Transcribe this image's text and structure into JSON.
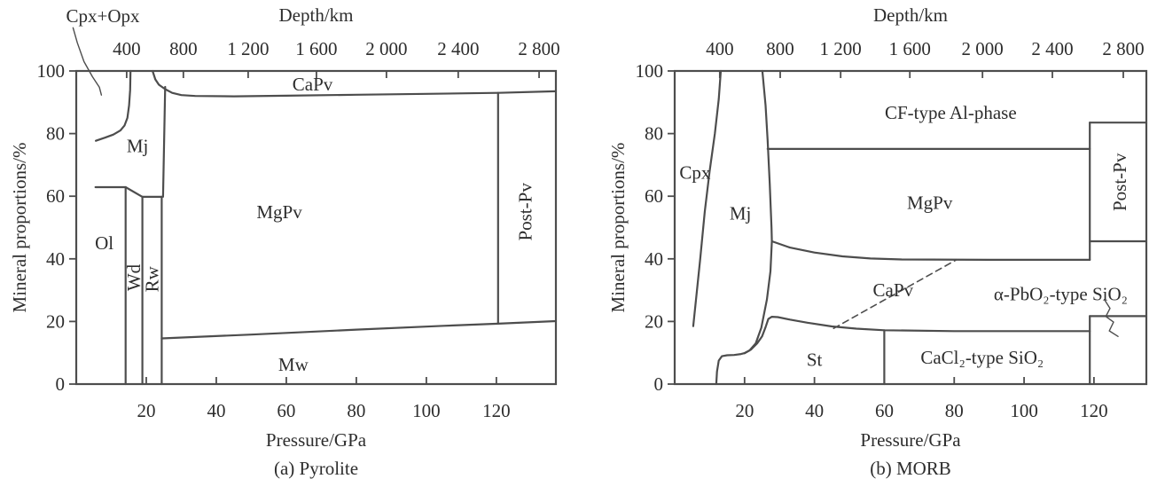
{
  "chart_data": {
    "type": "line",
    "kind": "mineral-phase-proportion-diagram",
    "line_color": "#4d4d4d",
    "text_color": "#2d2d2d",
    "panels": [
      {
        "id": "pyrolite",
        "caption": "(a) Pyrolite",
        "depth_axis_label": "Depth/km",
        "pressure_axis_label": "Pressure/GPa",
        "y_axis_label": "Mineral proportions/%",
        "xlim": [
          0,
          137
        ],
        "ylim": [
          0,
          100
        ],
        "pressure_ticks": [
          20,
          40,
          60,
          80,
          100,
          120
        ],
        "y_ticks": [
          0,
          20,
          40,
          60,
          80,
          100
        ],
        "depth_ticks": [
          {
            "label": "400",
            "gpa": 14.4
          },
          {
            "label": "800",
            "gpa": 30.6
          },
          {
            "label": "1 200",
            "gpa": 49.1
          },
          {
            "label": "1 600",
            "gpa": 68.6
          },
          {
            "label": "2 000",
            "gpa": 88.6
          },
          {
            "label": "2 400",
            "gpa": 109.1
          },
          {
            "label": "2 800",
            "gpa": 132.2
          }
        ],
        "boundaries": [
          {
            "name": "ol-wd-rw-top",
            "points": [
              [
                5.5,
                62.9
              ],
              [
                14.1,
                62.9
              ],
              [
                18.9,
                59.8
              ],
              [
                24.4,
                59.8
              ]
            ]
          },
          {
            "name": "ol-wd-boundary",
            "points": [
              [
                14.1,
                0
              ],
              [
                14.1,
                62.9
              ]
            ]
          },
          {
            "name": "wd-rw-boundary",
            "points": [
              [
                18.9,
                0
              ],
              [
                18.9,
                59.8
              ]
            ]
          },
          {
            "name": "rw-mgpv-boundary",
            "points": [
              [
                24.4,
                0
              ],
              [
                24.4,
                59.8
              ]
            ]
          },
          {
            "name": "mj-mgpv-boundary",
            "points": [
              [
                24.8,
                59.8
              ],
              [
                25.4,
                94.9
              ]
            ]
          },
          {
            "name": "cpxopx-mj-boundary",
            "points": [
              [
                5.6,
                77.7
              ],
              [
                8.2,
                78.7
              ],
              [
                10.6,
                79.7
              ],
              [
                12.6,
                81
              ],
              [
                13.8,
                82.6
              ],
              [
                14.6,
                85
              ],
              [
                15.1,
                89
              ],
              [
                15.4,
                94
              ],
              [
                15.5,
                100
              ]
            ]
          },
          {
            "name": "capv-mgpv-boundary",
            "points": [
              [
                21.8,
                100
              ],
              [
                22.6,
                97.3
              ],
              [
                23.6,
                95.6
              ],
              [
                25.4,
                94.2
              ],
              [
                27.4,
                93
              ],
              [
                30,
                92.3
              ],
              [
                34,
                92
              ],
              [
                45,
                91.9
              ],
              [
                60,
                92.1
              ],
              [
                80,
                92.4
              ],
              [
                100,
                92.7
              ],
              [
                120.5,
                93
              ],
              [
                137,
                93.5
              ]
            ]
          },
          {
            "name": "mgpv-postpv-boundary",
            "points": [
              [
                120.5,
                19.3
              ],
              [
                120.5,
                93
              ]
            ]
          },
          {
            "name": "mw-top-boundary",
            "points": [
              [
                24.4,
                14.6
              ],
              [
                50,
                15.8
              ],
              [
                80,
                17.4
              ],
              [
                105,
                18.6
              ],
              [
                120.5,
                19.3
              ],
              [
                137,
                20.1
              ]
            ]
          }
        ],
        "labels": [
          {
            "text": "Ol",
            "p": 8,
            "pct": 45
          },
          {
            "text": "Wd",
            "p": 16.4,
            "pct": 34,
            "rotate": -90
          },
          {
            "text": "Rw",
            "p": 21.6,
            "pct": 33.5,
            "rotate": -90
          },
          {
            "text": "Mj",
            "p": 17.5,
            "pct": 76
          },
          {
            "text": "CaPv",
            "p": 67.5,
            "pct": 95.7
          },
          {
            "text": "MgPv",
            "p": 58,
            "pct": 55
          },
          {
            "text": "Post-Pv",
            "p": 128.3,
            "pct": 55,
            "rotate": -90
          },
          {
            "text": "Mw",
            "p": 62,
            "pct": 6.3
          }
        ],
        "annotations": [
          {
            "text": "Cpx+Opx",
            "p": 7.6,
            "pct": 117.5,
            "leader": [
              [
                -0.9,
                113.8
              ],
              [
                0.3,
                109
              ],
              [
                2.2,
                103
              ],
              [
                4.6,
                98.2
              ],
              [
                6.6,
                94.8
              ],
              [
                7.2,
                92.3
              ]
            ]
          }
        ]
      },
      {
        "id": "morb",
        "caption": "(b) MORB",
        "depth_axis_label": "Depth/km",
        "pressure_axis_label": "Pressure/GPa",
        "y_axis_label": "Mineral proportions/%",
        "xlim": [
          0,
          135
        ],
        "ylim": [
          0,
          100
        ],
        "pressure_ticks": [
          20,
          40,
          60,
          80,
          100,
          120
        ],
        "y_ticks": [
          0,
          20,
          40,
          60,
          80,
          100
        ],
        "depth_ticks": [
          {
            "label": "400",
            "gpa": 12.9
          },
          {
            "label": "800",
            "gpa": 30.2
          },
          {
            "label": "1 200",
            "gpa": 47.5
          },
          {
            "label": "1 600",
            "gpa": 67.3
          },
          {
            "label": "2 000",
            "gpa": 88.1
          },
          {
            "label": "2 400",
            "gpa": 108.1
          },
          {
            "label": "2 800",
            "gpa": 128.4
          }
        ],
        "boundaries": [
          {
            "name": "cpx-mj-boundary",
            "points": [
              [
                5.3,
                18.5
              ],
              [
                6.2,
                28
              ],
              [
                7.3,
                40
              ],
              [
                8.6,
                55
              ],
              [
                10,
                68
              ],
              [
                11.5,
                80
              ],
              [
                12.6,
                91
              ],
              [
                13.2,
                100
              ]
            ]
          },
          {
            "name": "mj-right-boundary",
            "points": [
              [
                25.1,
                100
              ],
              [
                26,
                89
              ],
              [
                26.6,
                78
              ],
              [
                27.2,
                64
              ],
              [
                27.7,
                50
              ],
              [
                27.8,
                45.6
              ],
              [
                27.4,
                36
              ],
              [
                26.4,
                27
              ],
              [
                24.8,
                18
              ],
              [
                23.2,
                13
              ],
              [
                21.4,
                10.7
              ],
              [
                20,
                9.9
              ]
            ]
          },
          {
            "name": "st-left-boundary",
            "points": [
              [
                11.9,
                0
              ],
              [
                12.1,
                4
              ],
              [
                12.6,
                7.5
              ],
              [
                13.5,
                8.9
              ],
              [
                15,
                9.2
              ],
              [
                17,
                9.3
              ],
              [
                19,
                9.6
              ],
              [
                20,
                9.9
              ]
            ]
          },
          {
            "name": "st-top-boundary",
            "points": [
              [
                20,
                9.9
              ],
              [
                21.8,
                11
              ],
              [
                23.6,
                13
              ],
              [
                25,
                15.2
              ],
              [
                26,
                18.2
              ],
              [
                26.8,
                20.8
              ],
              [
                27.8,
                21.5
              ],
              [
                29.5,
                21.4
              ],
              [
                33,
                20.6
              ],
              [
                38,
                19.6
              ],
              [
                45,
                18.4
              ],
              [
                52,
                17.7
              ],
              [
                60,
                17.2
              ],
              [
                80,
                16.9
              ],
              [
                100,
                16.9
              ],
              [
                118.8,
                16.9
              ]
            ]
          },
          {
            "name": "st-cacl2-boundary",
            "points": [
              [
                60,
                0
              ],
              [
                60,
                17.2
              ]
            ]
          },
          {
            "name": "mgpv-top-boundary",
            "points": [
              [
                26.6,
                75.1
              ],
              [
                118.8,
                75.1
              ]
            ]
          },
          {
            "name": "mgpv-bottom-boundary",
            "points": [
              [
                27.8,
                45.6
              ],
              [
                33,
                43.6
              ],
              [
                40,
                42
              ],
              [
                48,
                40.8
              ],
              [
                56,
                40.1
              ],
              [
                65,
                39.8
              ],
              [
                90,
                39.7
              ],
              [
                118.8,
                39.7
              ]
            ]
          },
          {
            "name": "postpv-left-boundary",
            "points": [
              [
                118.8,
                39.7
              ],
              [
                118.8,
                83.5
              ]
            ]
          },
          {
            "name": "cf-top-right-boundary",
            "points": [
              [
                118.8,
                83.5
              ],
              [
                135,
                83.5
              ]
            ]
          },
          {
            "name": "postpv-bottom-boundary",
            "points": [
              [
                118.8,
                45.6
              ],
              [
                135,
                45.6
              ]
            ]
          },
          {
            "name": "sio2-transition-boundary",
            "points": [
              [
                118.8,
                0
              ],
              [
                118.8,
                21.7
              ]
            ]
          },
          {
            "name": "apbo2-top-boundary",
            "points": [
              [
                118.8,
                21.7
              ],
              [
                135,
                21.7
              ]
            ]
          },
          {
            "name": "capv-dashed-boundary",
            "dashed": true,
            "points": [
              [
                45.5,
                17.8
              ],
              [
                57,
                25
              ],
              [
                68,
                31.8
              ],
              [
                80.5,
                39.6
              ]
            ]
          }
        ],
        "labels": [
          {
            "text": "Cpx",
            "p": 5.8,
            "pct": 67.5
          },
          {
            "text": "Mj",
            "p": 18.8,
            "pct": 54.5
          },
          {
            "text": "CF-type Al-phase",
            "p": 79,
            "pct": 86.7
          },
          {
            "text": "MgPv",
            "p": 73,
            "pct": 58
          },
          {
            "text": "CaPv",
            "p": 62.5,
            "pct": 30
          },
          {
            "text": "St",
            "p": 40,
            "pct": 7.8
          },
          {
            "text": "CaCl₂-type SiO₂",
            "p": 88,
            "pct": 8.5
          },
          {
            "text": "Post-Pv",
            "p": 127.4,
            "pct": 64.5,
            "rotate": -90
          }
        ],
        "annotations": [
          {
            "text": "α-PbO₂-type SiO₂",
            "p": 110.5,
            "pct": 28.8,
            "leader": [
              [
                123.0,
                27.0
              ],
              [
                124.6,
                24.2
              ],
              [
                123.4,
                21.6
              ],
              [
                125.6,
                19.8
              ],
              [
                124.4,
                17.0
              ],
              [
                126.9,
                15.2
              ]
            ]
          }
        ]
      }
    ]
  }
}
